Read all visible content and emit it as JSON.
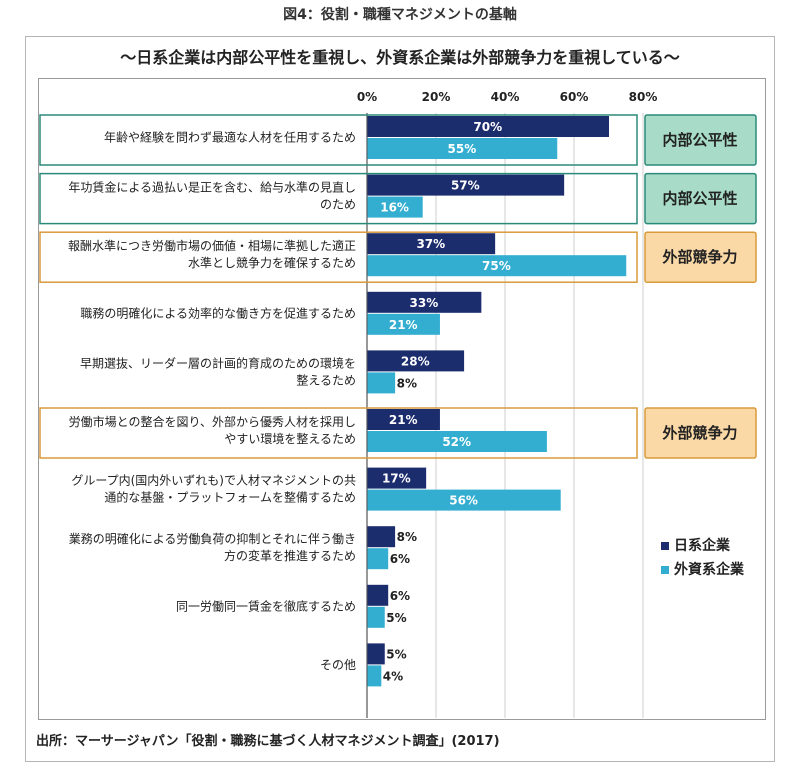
{
  "figure_title": "図4：役割・職種マネジメントの基軸",
  "source": "出所：マーサージャパン「役割・職務に基づく人材マネジメント調査」(2017)",
  "chart_data": {
    "type": "bar",
    "orientation": "horizontal",
    "title": "～日系企業は内部公平性を重視し、外資系企業は外部競争力を重視している～",
    "xlim": [
      0,
      80
    ],
    "xticks": [
      "0%",
      "20%",
      "40%",
      "60%",
      "80%"
    ],
    "xtick_values": [
      0,
      20,
      40,
      60,
      80
    ],
    "grid": true,
    "legend_position": "right",
    "categories": [
      [
        "年齢や経験を問わず最適な人材を任用するため"
      ],
      [
        "年功賃金による過払い是正を含む、給与水準の見直し",
        "のため"
      ],
      [
        "報酬水準につき労働市場の価値・相場に準拠した適正",
        "水準とし競争力を確保するため"
      ],
      [
        "職務の明確化による効率的な働き方を促進するため"
      ],
      [
        "早期選抜、リーダー層の計画的育成のための環境を",
        "整えるため"
      ],
      [
        "労働市場との整合を図り、外部から優秀人材を採用し",
        "やすい環境を整えるため"
      ],
      [
        "グループ内(国内外いずれも)で人材マネジメントの共",
        "通的な基盤・プラットフォームを整備するため"
      ],
      [
        "業務の明確化による労働負荷の抑制とそれに伴う働き",
        "方の変革を推進するため"
      ],
      [
        "同一労働同一賃金を徹底するため"
      ],
      [
        "その他"
      ]
    ],
    "series": [
      {
        "name": "日系企業",
        "color": "#1c2d6e",
        "values": [
          70,
          57,
          37,
          33,
          28,
          21,
          17,
          8,
          6,
          5
        ],
        "labels": [
          "70%",
          "57%",
          "37%",
          "33%",
          "28%",
          "21%",
          "17%",
          "8%",
          "6%",
          "5%"
        ]
      },
      {
        "name": "外資系企業",
        "color": "#33aed0",
        "values": [
          55,
          16,
          75,
          21,
          8,
          52,
          56,
          6,
          5,
          4
        ],
        "labels": [
          "55%",
          "16%",
          "75%",
          "21%",
          "8%",
          "52%",
          "56%",
          "6%",
          "5%",
          "4%"
        ]
      }
    ],
    "annotations": [
      {
        "row": 0,
        "text": "内部公平性",
        "kind": "internal"
      },
      {
        "row": 1,
        "text": "内部公平性",
        "kind": "internal"
      },
      {
        "row": 2,
        "text": "外部競争力",
        "kind": "external"
      },
      {
        "row": 5,
        "text": "外部競争力",
        "kind": "external"
      }
    ],
    "annotation_colors": {
      "internal": {
        "fill": "#a8dcc8",
        "stroke": "#2a8a78"
      },
      "external": {
        "fill": "#fad9a6",
        "stroke": "#d99a3a"
      }
    }
  }
}
